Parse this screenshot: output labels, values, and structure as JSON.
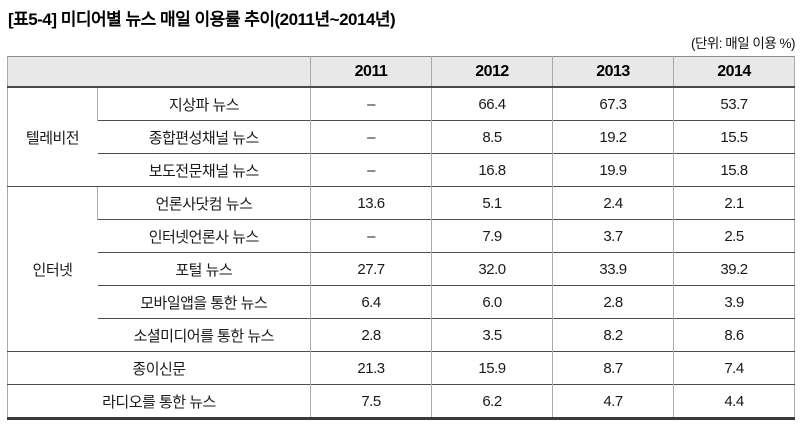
{
  "title": "[표5-4] 미디어별 뉴스 매일 이용률 추이(2011년~2014년)",
  "unit_note": "(단위: 매일 이용 %)",
  "colors": {
    "header_bg": "#e8e8e8",
    "row_line": "#4d4d4d",
    "column_line": "#ababab",
    "bottom_line": "#3a3a3a",
    "text": "#111111"
  },
  "table": {
    "corner": "",
    "years": [
      "2011",
      "2012",
      "2013",
      "2014"
    ],
    "groups": [
      {
        "name": "텔레비전",
        "rows": [
          {
            "label": "지상파 뉴스",
            "values": [
              "–",
              "66.4",
              "67.3",
              "53.7"
            ]
          },
          {
            "label": "종합편성채널 뉴스",
            "values": [
              "–",
              "8.5",
              "19.2",
              "15.5"
            ]
          },
          {
            "label": "보도전문채널 뉴스",
            "values": [
              "–",
              "16.8",
              "19.9",
              "15.8"
            ]
          }
        ]
      },
      {
        "name": "인터넷",
        "rows": [
          {
            "label": "언론사닷컴 뉴스",
            "values": [
              "13.6",
              "5.1",
              "2.4",
              "2.1"
            ]
          },
          {
            "label": "인터넷언론사 뉴스",
            "values": [
              "–",
              "7.9",
              "3.7",
              "2.5"
            ]
          },
          {
            "label": "포털 뉴스",
            "values": [
              "27.7",
              "32.0",
              "33.9",
              "39.2"
            ]
          },
          {
            "label": "모바일앱을 통한 뉴스",
            "values": [
              "6.4",
              "6.0",
              "2.8",
              "3.9"
            ]
          },
          {
            "label": "소셜미디어를 통한 뉴스",
            "values": [
              "2.8",
              "3.5",
              "8.2",
              "8.6"
            ]
          }
        ]
      }
    ],
    "footer_rows": [
      {
        "label": "종이신문",
        "values": [
          "21.3",
          "15.9",
          "8.7",
          "7.4"
        ]
      },
      {
        "label": "라디오를 통한 뉴스",
        "values": [
          "7.5",
          "6.2",
          "4.7",
          "4.4"
        ]
      }
    ]
  }
}
